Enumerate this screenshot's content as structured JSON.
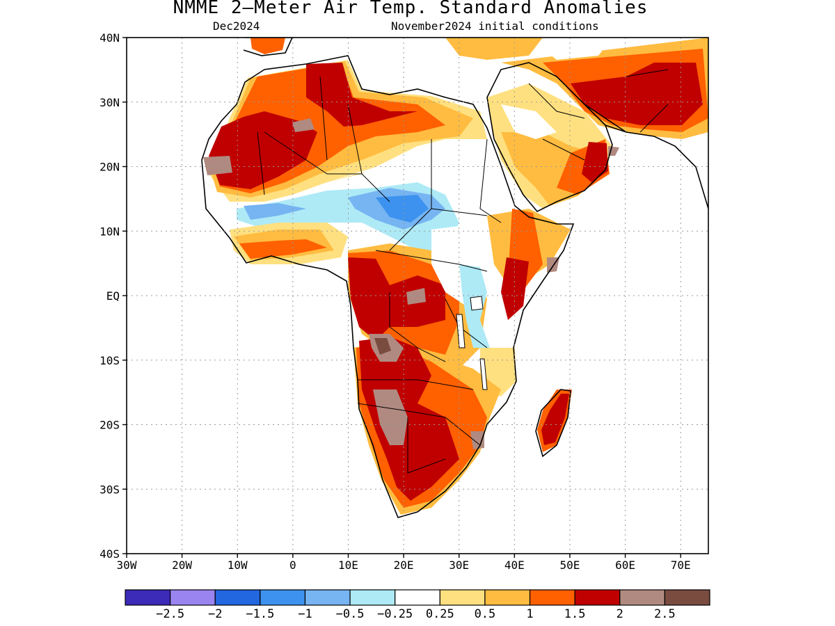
{
  "header": {
    "title": "NMME 2–Meter Air Temp. Standard Anomalies",
    "target_month": "Dec2024",
    "initial_conditions": "November2024 initial conditions"
  },
  "map": {
    "lon_range": [
      -30,
      75
    ],
    "lat_range": [
      -40,
      40
    ],
    "lat_labels": [
      "40N",
      "30N",
      "20N",
      "10N",
      "EQ",
      "10S",
      "20S",
      "30S",
      "40S"
    ],
    "lat_values": [
      40,
      30,
      20,
      10,
      0,
      -10,
      -20,
      -30,
      -40
    ],
    "lon_labels": [
      "30W",
      "20W",
      "10W",
      "0",
      "10E",
      "20E",
      "30E",
      "40E",
      "50E",
      "60E",
      "70E"
    ],
    "lon_values": [
      -30,
      -20,
      -10,
      0,
      10,
      20,
      30,
      40,
      50,
      60,
      70
    ],
    "gridlines": "dotted"
  },
  "colorbar": {
    "colors": [
      "#3c2ab8",
      "#9a84f0",
      "#2266e0",
      "#3c92ee",
      "#76b4f2",
      "#aeeaf6",
      "#ffffff",
      "#ffe080",
      "#ffbc40",
      "#ff6000",
      "#c00000",
      "#b08a80",
      "#7a4c40"
    ],
    "labels": [
      "−2.5",
      "−2",
      "−1.5",
      "−1",
      "−0.5",
      "−0.25",
      "0.25",
      "0.5",
      "1",
      "1.5",
      "2",
      "2.5"
    ]
  },
  "chart_data": {
    "type": "heatmap",
    "title": "NMME 2–Meter Air Temp. Standard Anomalies",
    "subtitle": "Dec2024 · November2024 initial conditions",
    "x_ticks": [
      "30W",
      "20W",
      "10W",
      "0",
      "10E",
      "20E",
      "30E",
      "40E",
      "50E",
      "60E",
      "70E"
    ],
    "y_ticks": [
      "40N",
      "30N",
      "20N",
      "10N",
      "EQ",
      "10S",
      "20S",
      "30S",
      "40S"
    ],
    "xlim": [
      -30,
      75
    ],
    "ylim": [
      -40,
      40
    ],
    "scale_levels": [
      -2.5,
      -2,
      -1.5,
      -1,
      -0.5,
      -0.25,
      0.25,
      0.5,
      1,
      1.5,
      2,
      2.5
    ]
  }
}
